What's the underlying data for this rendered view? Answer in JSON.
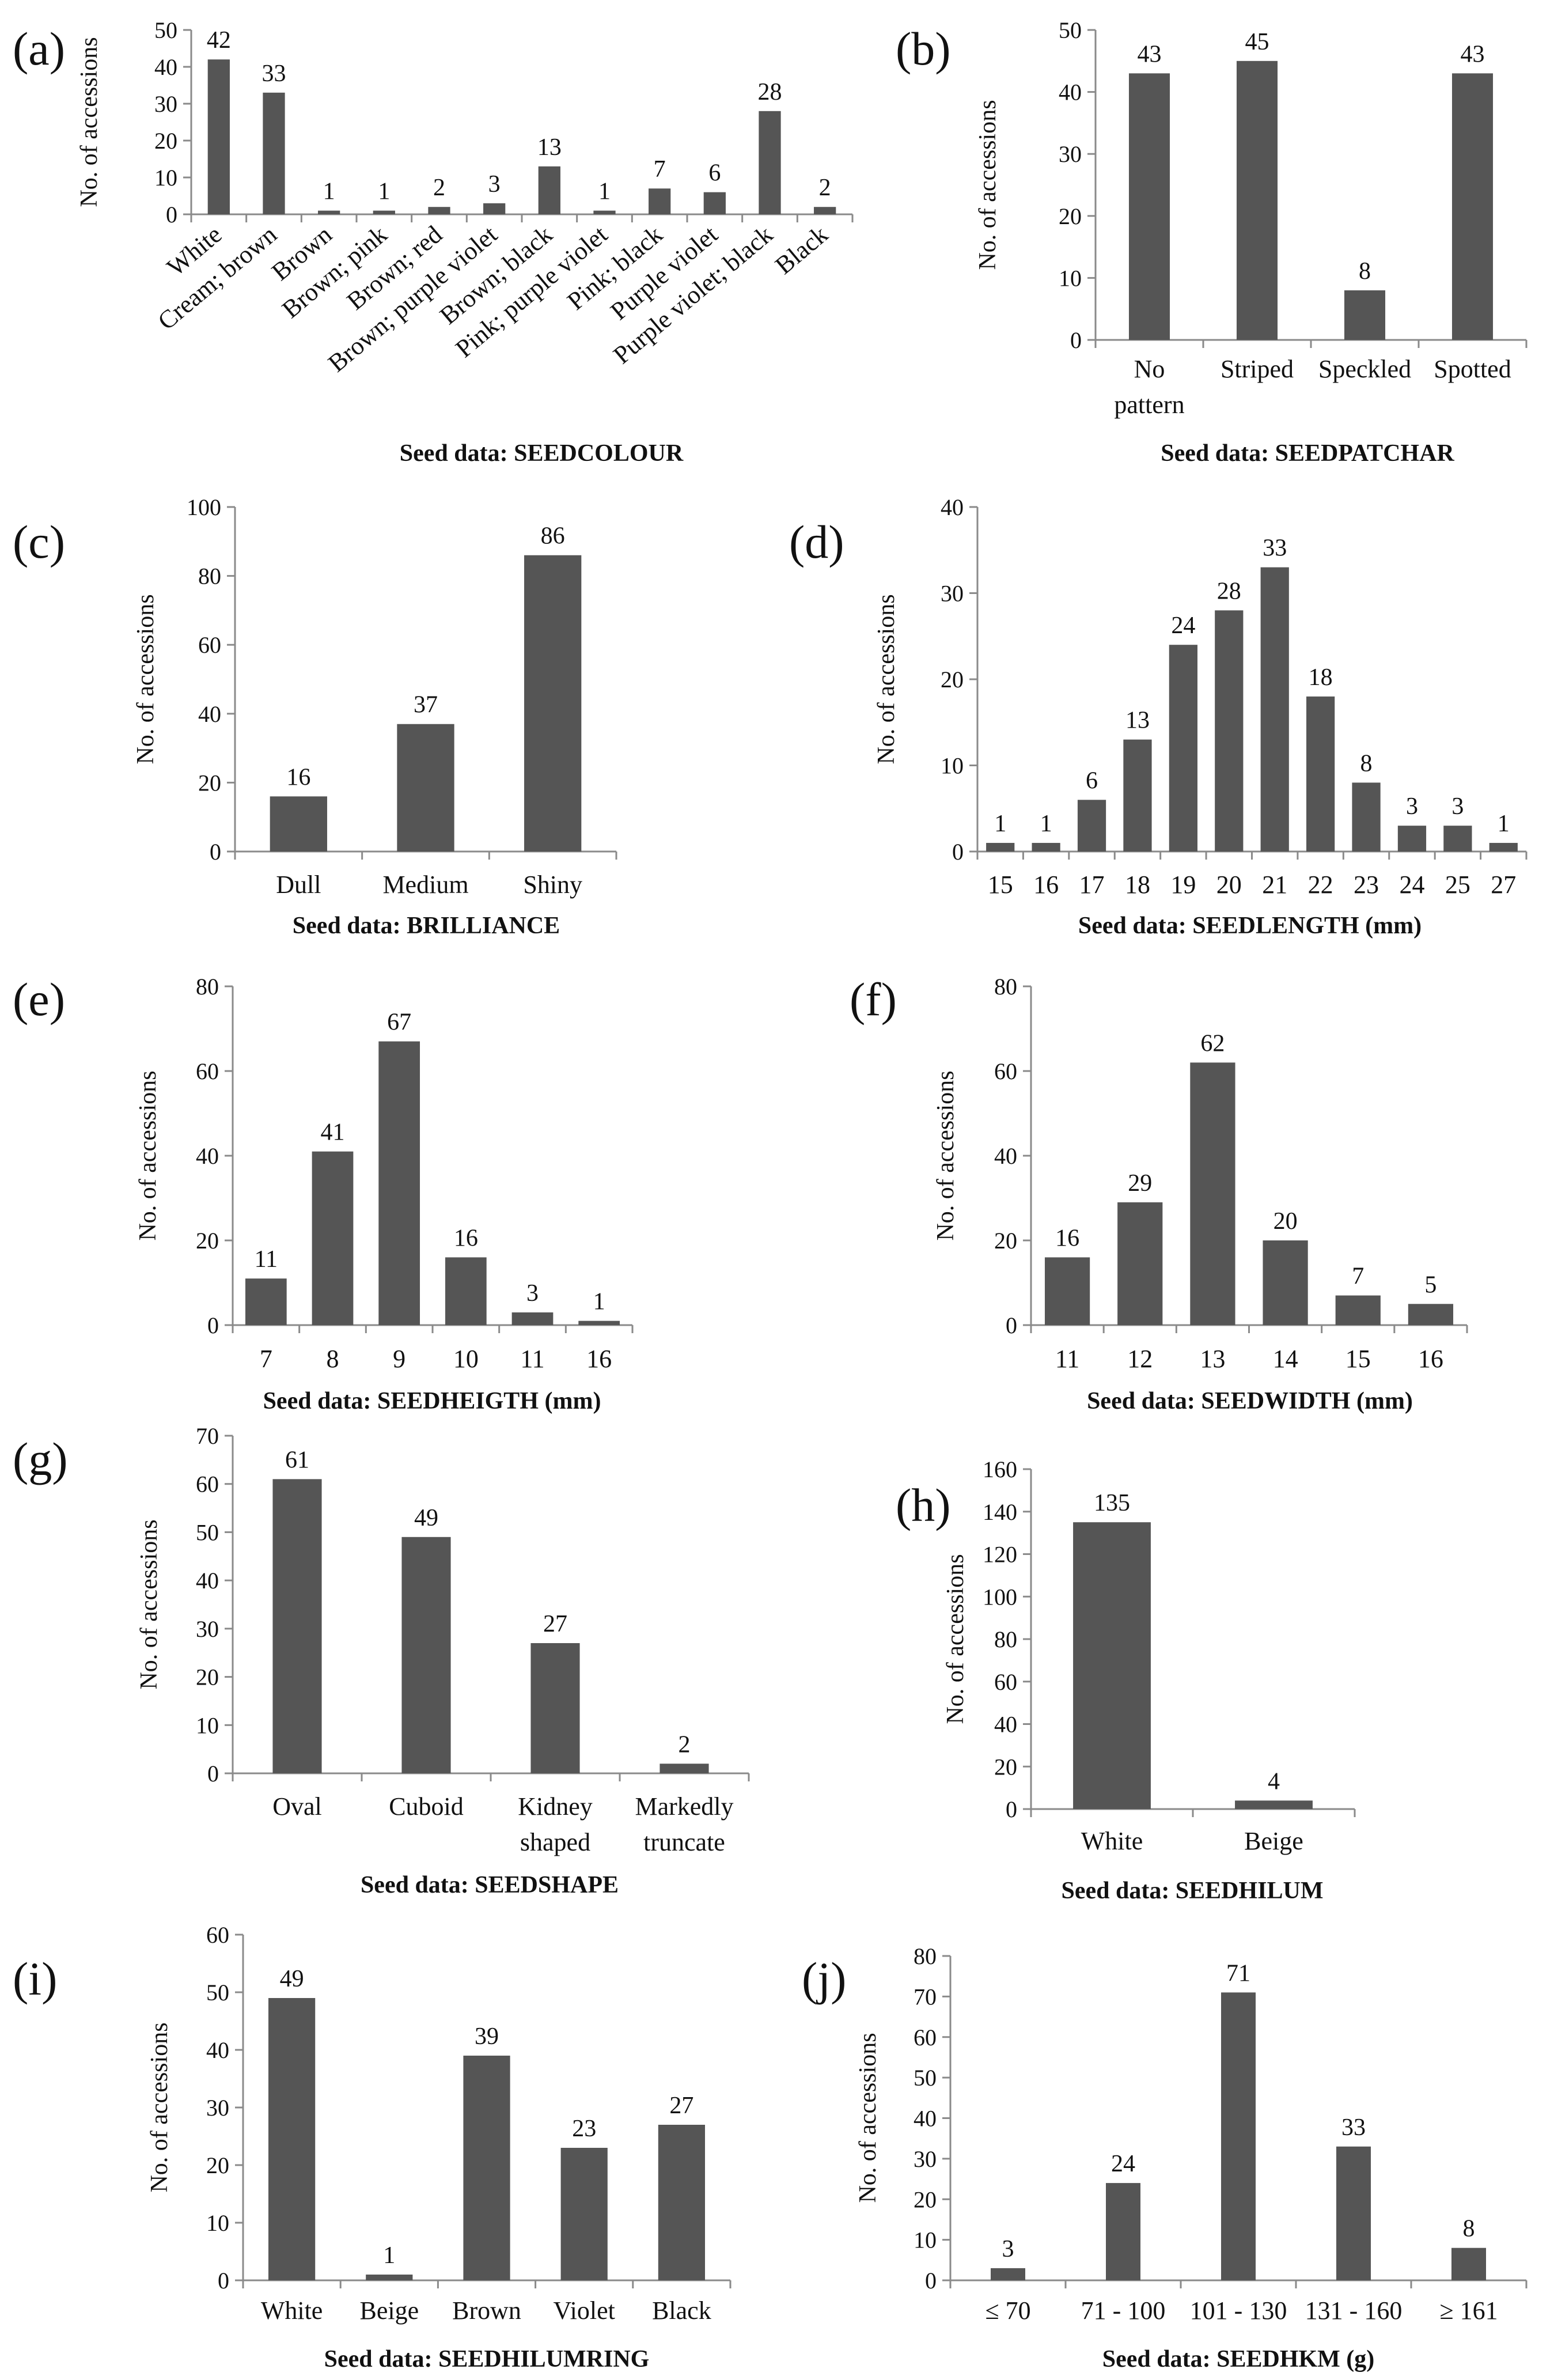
{
  "colors": {
    "bar": "#555555",
    "axis": "#8a8a8a",
    "text": "#111111"
  },
  "chart_data": [
    {
      "id": "a",
      "panel_label": "(a)",
      "type": "bar",
      "title": "",
      "ylabel": "No. of accessions",
      "xlabel": "Seed data: SEEDCOLOUR",
      "ylim": [
        0,
        50
      ],
      "yticks": [
        0,
        10,
        20,
        30,
        40,
        50
      ],
      "categories": [
        "White",
        "Cream; brown",
        "Brown",
        "Brown; pink",
        "Brown; red",
        "Brown; purple violet",
        "Brown; black",
        "Pink; purple violet",
        "Pink; black",
        "Purple violet",
        "Purple violet; black",
        "Black"
      ],
      "values": [
        42,
        33,
        1,
        1,
        2,
        3,
        13,
        1,
        7,
        6,
        28,
        2
      ]
    },
    {
      "id": "b",
      "panel_label": "(b)",
      "type": "bar",
      "title": "",
      "ylabel": "No. of accessions",
      "xlabel": "Seed data: SEEDPATCHAR",
      "ylim": [
        0,
        50
      ],
      "yticks": [
        0,
        10,
        20,
        30,
        40,
        50
      ],
      "categories": [
        "No pattern",
        "Striped",
        "Speckled",
        "Spotted"
      ],
      "values": [
        43,
        45,
        8,
        43
      ]
    },
    {
      "id": "c",
      "panel_label": "(c)",
      "type": "bar",
      "title": "",
      "ylabel": "No. of accessions",
      "xlabel": "Seed data: BRILLIANCE",
      "ylim": [
        0,
        100
      ],
      "yticks": [
        0,
        20,
        40,
        60,
        80,
        100
      ],
      "categories": [
        "Dull",
        "Medium",
        "Shiny"
      ],
      "values": [
        16,
        37,
        86
      ]
    },
    {
      "id": "d",
      "panel_label": "(d)",
      "type": "bar",
      "title": "",
      "ylabel": "No. of accessions",
      "xlabel": "Seed data: SEEDLENGTH (mm)",
      "ylim": [
        0,
        40
      ],
      "yticks": [
        0,
        10,
        20,
        30,
        40
      ],
      "categories": [
        "15",
        "16",
        "17",
        "18",
        "19",
        "20",
        "21",
        "22",
        "23",
        "24",
        "25",
        "27"
      ],
      "values": [
        1,
        1,
        6,
        13,
        24,
        28,
        33,
        18,
        8,
        3,
        3,
        1
      ]
    },
    {
      "id": "e",
      "panel_label": "(e)",
      "type": "bar",
      "title": "",
      "ylabel": "No. of accessions",
      "xlabel": "Seed data: SEEDHEIGTH (mm)",
      "ylim": [
        0,
        80
      ],
      "yticks": [
        0,
        20,
        40,
        60,
        80
      ],
      "categories": [
        "7",
        "8",
        "9",
        "10",
        "11",
        "16"
      ],
      "values": [
        11,
        41,
        67,
        16,
        3,
        1
      ]
    },
    {
      "id": "f",
      "panel_label": "(f)",
      "type": "bar",
      "title": "",
      "ylabel": "No. of accessions",
      "xlabel": "Seed data: SEEDWIDTH (mm)",
      "ylim": [
        0,
        80
      ],
      "yticks": [
        0,
        20,
        40,
        60,
        80
      ],
      "categories": [
        "11",
        "12",
        "13",
        "14",
        "15",
        "16"
      ],
      "values": [
        16,
        29,
        62,
        20,
        7,
        5
      ]
    },
    {
      "id": "g",
      "panel_label": "(g)",
      "type": "bar",
      "title": "",
      "ylabel": "No. of accessions",
      "xlabel": "Seed data: SEEDSHAPE",
      "ylim": [
        0,
        70
      ],
      "yticks": [
        0,
        10,
        20,
        30,
        40,
        50,
        60,
        70
      ],
      "categories": [
        "Oval",
        "Cuboid",
        "Kidney shaped",
        "Markedly truncate"
      ],
      "values": [
        61,
        49,
        27,
        2
      ]
    },
    {
      "id": "h",
      "panel_label": "(h)",
      "type": "bar",
      "title": "",
      "ylabel": "No. of accessions",
      "xlabel": "Seed data: SEEDHILUM",
      "ylim": [
        0,
        160
      ],
      "yticks": [
        0,
        20,
        40,
        60,
        80,
        100,
        120,
        140,
        160
      ],
      "categories": [
        "White",
        "Beige"
      ],
      "values": [
        135,
        4
      ]
    },
    {
      "id": "i",
      "panel_label": "(i)",
      "type": "bar",
      "title": "",
      "ylabel": "No. of accessions",
      "xlabel": "Seed data: SEEDHILUMRING",
      "ylim": [
        0,
        60
      ],
      "yticks": [
        0,
        10,
        20,
        30,
        40,
        50,
        60
      ],
      "categories": [
        "White",
        "Beige",
        "Brown",
        "Violet",
        "Black"
      ],
      "values": [
        49,
        1,
        39,
        23,
        27
      ]
    },
    {
      "id": "j",
      "panel_label": "(j)",
      "type": "bar",
      "title": "",
      "ylabel": "No. of accessions",
      "xlabel": "Seed data: SEEDHKM (g)",
      "ylim": [
        0,
        80
      ],
      "yticks": [
        0,
        10,
        20,
        30,
        40,
        50,
        60,
        70,
        80
      ],
      "categories": [
        "≤ 70",
        "71 - 100",
        "101 - 130",
        "131 - 160",
        "≥ 161"
      ],
      "values": [
        3,
        24,
        71,
        33,
        8
      ]
    }
  ]
}
